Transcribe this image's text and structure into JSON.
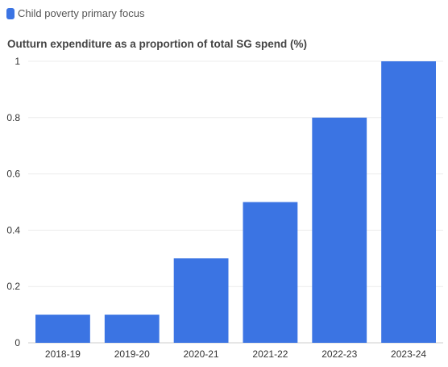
{
  "chart_data": {
    "type": "bar",
    "title": "Outturn expenditure as a proportion of total SG spend (%)",
    "xlabel": "",
    "ylabel": "",
    "categories": [
      "2018-19",
      "2019-20",
      "2020-21",
      "2021-22",
      "2022-23",
      "2023-24"
    ],
    "series": [
      {
        "name": "Child poverty primary focus",
        "color": "#3b74e3",
        "values": [
          0.1,
          0.1,
          0.3,
          0.5,
          0.8,
          1.0
        ]
      }
    ],
    "ylim": [
      0,
      1
    ],
    "yticks": [
      "0",
      "0.2",
      "0.4",
      "0.6",
      "0.8",
      "1"
    ],
    "grid": true,
    "legend_position": "top-left"
  }
}
